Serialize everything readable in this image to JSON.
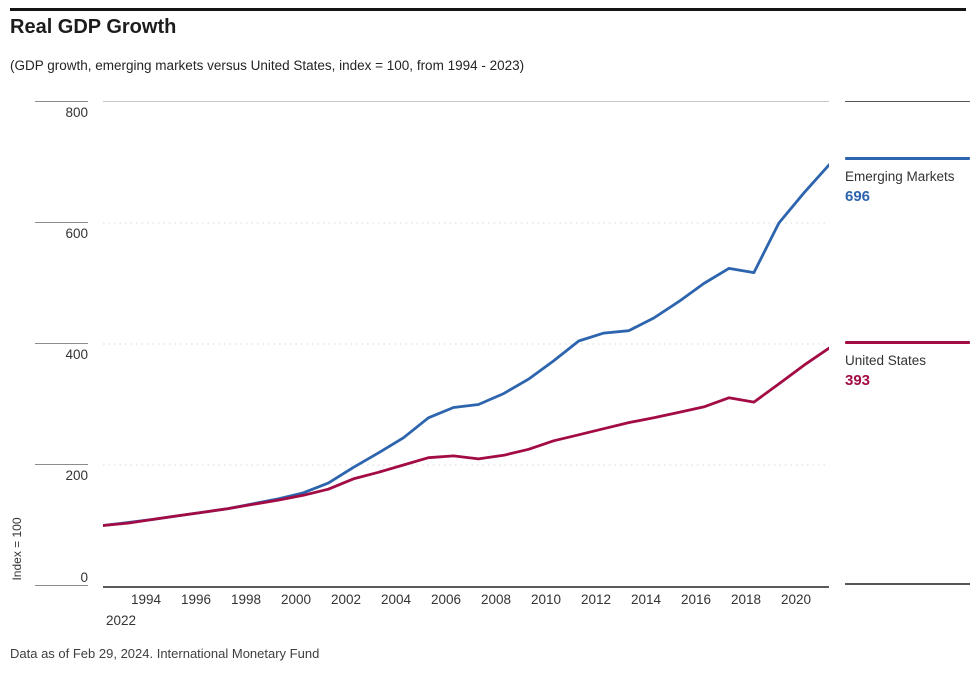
{
  "header": {
    "title": "Real GDP Growth",
    "subtitle": "(GDP growth, emerging markets versus United States, index = 100, from 1994 - 2023)"
  },
  "footer": {
    "source": "Data as of Feb 29, 2024. International Monetary Fund"
  },
  "colors": {
    "emerging_markets": "#2d64ae",
    "united_states": "#a30b45",
    "grid_dotted": "#e0e0e0",
    "plot_top_border": "#c6c6c6",
    "axis_line": "#5a5a5a"
  },
  "y_axis": {
    "label": "Index = 100",
    "ticks": [
      "800",
      "600",
      "400",
      "200",
      "0"
    ]
  },
  "x_axis": {
    "ticks": [
      "1994",
      "1996",
      "1998",
      "2000",
      "2002",
      "2004",
      "2006",
      "2008",
      "2010",
      "2012",
      "2014",
      "2016",
      "2018",
      "2020",
      "2022"
    ]
  },
  "legend": {
    "items": [
      {
        "label": "Emerging Markets",
        "value": "696"
      },
      {
        "label": "United States",
        "value": "393"
      }
    ]
  },
  "chart_data": {
    "type": "line",
    "title": "Real GDP Growth",
    "subtitle": "(GDP growth, emerging markets versus United States, index = 100, from 1994 - 2023)",
    "xlabel": "",
    "ylabel": "Index = 100",
    "ylim": [
      0,
      800
    ],
    "yticks": [
      0,
      200,
      400,
      600,
      800
    ],
    "grid": "horizontal dotted at 200/400/600",
    "grid_values": [
      200,
      400,
      600
    ],
    "legend_position": "right",
    "x": [
      1994,
      1995,
      1996,
      1997,
      1998,
      1999,
      2000,
      2001,
      2002,
      2003,
      2004,
      2005,
      2006,
      2007,
      2008,
      2009,
      2010,
      2011,
      2012,
      2013,
      2014,
      2015,
      2016,
      2017,
      2018,
      2019,
      2020,
      2021,
      2022,
      2023
    ],
    "series": [
      {
        "name": "Emerging Markets",
        "color": "#2d64ae",
        "end_value": 696,
        "values": [
          100,
          105,
          110,
          116,
          122,
          128,
          136,
          144,
          154,
          170,
          196,
          220,
          245,
          278,
          295,
          300,
          318,
          342,
          372,
          405,
          418,
          422,
          443,
          470,
          500,
          525,
          518,
          600,
          650,
          696
        ]
      },
      {
        "name": "United States",
        "color": "#a30b45",
        "end_value": 393,
        "values": [
          100,
          104,
          110,
          116,
          122,
          128,
          135,
          142,
          150,
          160,
          177,
          188,
          200,
          212,
          215,
          210,
          216,
          226,
          240,
          250,
          260,
          270,
          278,
          287,
          296,
          311,
          304,
          334,
          365,
          393
        ]
      }
    ]
  }
}
